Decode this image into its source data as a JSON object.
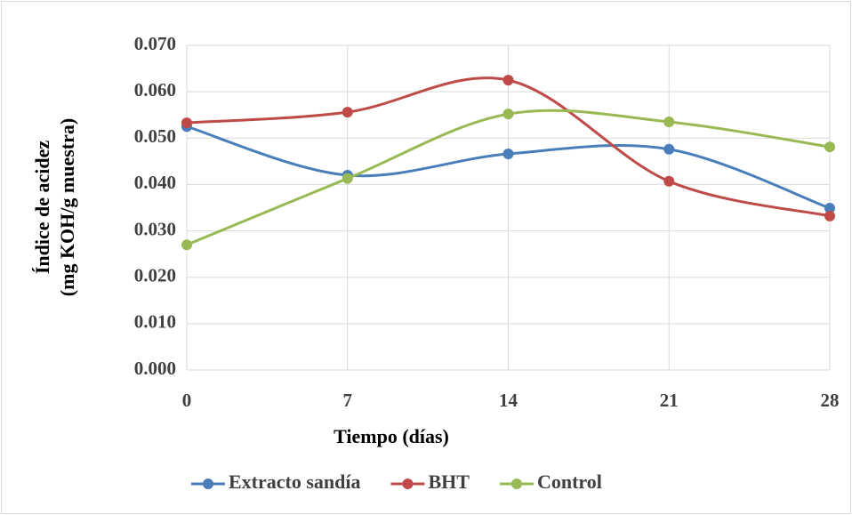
{
  "chart_data": {
    "type": "line",
    "ylabel": [
      "Índice de acidez",
      "(mg KOH/g muestra)"
    ],
    "xlabel": "Tiempo (días)",
    "x": [
      0,
      7,
      14,
      21,
      28
    ],
    "xlim": [
      0,
      28
    ],
    "xticks": [
      0,
      7,
      14,
      21,
      28
    ],
    "ylim": [
      0,
      0.07
    ],
    "yticks": [
      {
        "value": 0,
        "label": "0.000"
      },
      {
        "value": 0.01,
        "label": "0.010"
      },
      {
        "value": 0.02,
        "label": "0.020"
      },
      {
        "value": 0.03,
        "label": "0.030"
      },
      {
        "value": 0.04,
        "label": "0.040"
      },
      {
        "value": 0.05,
        "label": "0.050"
      },
      {
        "value": 0.06,
        "label": "0.060"
      },
      {
        "value": 0.07,
        "label": "0.070"
      }
    ],
    "grid": true,
    "smooth": true,
    "legend": "bottom",
    "series": [
      {
        "name": "Extracto sandía",
        "color": "#4a7ebb",
        "values": [
          0.0525,
          0.042,
          0.0466,
          0.0476,
          0.0349
        ]
      },
      {
        "name": "BHT",
        "color": "#be4b48",
        "values": [
          0.0533,
          0.0556,
          0.0625,
          0.0407,
          0.0332
        ]
      },
      {
        "name": "Control",
        "color": "#98b954",
        "values": [
          0.027,
          0.0413,
          0.0552,
          0.0535,
          0.0481
        ]
      }
    ]
  }
}
